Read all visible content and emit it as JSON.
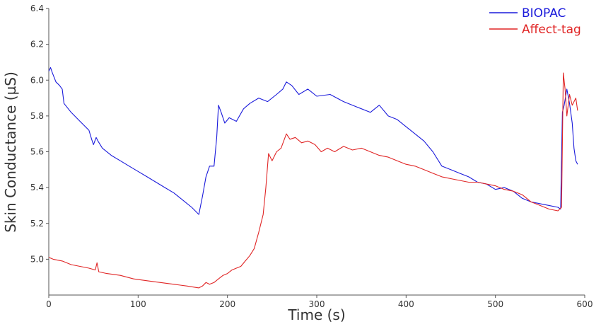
{
  "chart_data": {
    "type": "line",
    "xlabel": "Time (s)",
    "ylabel": "Skin Conductance (µS)",
    "xlim": [
      0,
      600
    ],
    "ylim": [
      4.8,
      6.4
    ],
    "xticks": [
      "0",
      "100",
      "200",
      "300",
      "400",
      "500",
      "600"
    ],
    "yticks": [
      "5.0",
      "5.2",
      "5.4",
      "5.6",
      "5.8",
      "6.0",
      "6.2",
      "6.4"
    ],
    "grid": false,
    "legend_position": "top-right",
    "series": [
      {
        "name": "BIOPAC",
        "color": "#1a1adb",
        "points": [
          [
            0,
            6.05
          ],
          [
            2,
            6.07
          ],
          [
            4,
            6.04
          ],
          [
            8,
            5.99
          ],
          [
            12,
            5.97
          ],
          [
            15,
            5.95
          ],
          [
            17,
            5.87
          ],
          [
            25,
            5.82
          ],
          [
            35,
            5.77
          ],
          [
            45,
            5.72
          ],
          [
            48,
            5.67
          ],
          [
            50,
            5.64
          ],
          [
            53,
            5.68
          ],
          [
            55,
            5.66
          ],
          [
            60,
            5.62
          ],
          [
            70,
            5.58
          ],
          [
            80,
            5.55
          ],
          [
            90,
            5.52
          ],
          [
            100,
            5.49
          ],
          [
            110,
            5.46
          ],
          [
            120,
            5.43
          ],
          [
            130,
            5.4
          ],
          [
            140,
            5.37
          ],
          [
            150,
            5.33
          ],
          [
            160,
            5.29
          ],
          [
            168,
            5.25
          ],
          [
            172,
            5.35
          ],
          [
            176,
            5.46
          ],
          [
            180,
            5.52
          ],
          [
            185,
            5.52
          ],
          [
            188,
            5.68
          ],
          [
            190,
            5.86
          ],
          [
            193,
            5.82
          ],
          [
            197,
            5.76
          ],
          [
            202,
            5.79
          ],
          [
            210,
            5.77
          ],
          [
            218,
            5.84
          ],
          [
            225,
            5.87
          ],
          [
            235,
            5.9
          ],
          [
            245,
            5.88
          ],
          [
            255,
            5.92
          ],
          [
            262,
            5.95
          ],
          [
            266,
            5.99
          ],
          [
            272,
            5.97
          ],
          [
            280,
            5.92
          ],
          [
            290,
            5.95
          ],
          [
            300,
            5.91
          ],
          [
            315,
            5.92
          ],
          [
            330,
            5.88
          ],
          [
            345,
            5.85
          ],
          [
            360,
            5.82
          ],
          [
            370,
            5.86
          ],
          [
            380,
            5.8
          ],
          [
            390,
            5.78
          ],
          [
            400,
            5.74
          ],
          [
            410,
            5.7
          ],
          [
            420,
            5.66
          ],
          [
            430,
            5.6
          ],
          [
            440,
            5.52
          ],
          [
            450,
            5.5
          ],
          [
            460,
            5.48
          ],
          [
            470,
            5.46
          ],
          [
            480,
            5.43
          ],
          [
            490,
            5.42
          ],
          [
            500,
            5.39
          ],
          [
            510,
            5.4
          ],
          [
            520,
            5.38
          ],
          [
            530,
            5.34
          ],
          [
            540,
            5.32
          ],
          [
            550,
            5.31
          ],
          [
            560,
            5.3
          ],
          [
            570,
            5.29
          ],
          [
            573,
            5.28
          ],
          [
            575,
            5.82
          ],
          [
            577,
            5.86
          ],
          [
            580,
            5.95
          ],
          [
            583,
            5.87
          ],
          [
            586,
            5.76
          ],
          [
            588,
            5.62
          ],
          [
            590,
            5.55
          ],
          [
            592,
            5.53
          ]
        ]
      },
      {
        "name": "Affect-tag",
        "color": "#e02525",
        "points": [
          [
            0,
            5.01
          ],
          [
            5,
            5.0
          ],
          [
            15,
            4.99
          ],
          [
            25,
            4.97
          ],
          [
            35,
            4.96
          ],
          [
            45,
            4.95
          ],
          [
            52,
            4.94
          ],
          [
            54,
            4.98
          ],
          [
            56,
            4.93
          ],
          [
            65,
            4.92
          ],
          [
            80,
            4.91
          ],
          [
            95,
            4.89
          ],
          [
            110,
            4.88
          ],
          [
            125,
            4.87
          ],
          [
            140,
            4.86
          ],
          [
            155,
            4.85
          ],
          [
            168,
            4.84
          ],
          [
            172,
            4.85
          ],
          [
            176,
            4.87
          ],
          [
            180,
            4.86
          ],
          [
            185,
            4.87
          ],
          [
            190,
            4.89
          ],
          [
            195,
            4.91
          ],
          [
            200,
            4.92
          ],
          [
            205,
            4.94
          ],
          [
            210,
            4.95
          ],
          [
            215,
            4.96
          ],
          [
            220,
            4.99
          ],
          [
            225,
            5.02
          ],
          [
            230,
            5.06
          ],
          [
            235,
            5.15
          ],
          [
            240,
            5.25
          ],
          [
            243,
            5.4
          ],
          [
            246,
            5.59
          ],
          [
            250,
            5.55
          ],
          [
            255,
            5.6
          ],
          [
            260,
            5.62
          ],
          [
            266,
            5.7
          ],
          [
            270,
            5.67
          ],
          [
            276,
            5.68
          ],
          [
            283,
            5.65
          ],
          [
            290,
            5.66
          ],
          [
            298,
            5.64
          ],
          [
            305,
            5.6
          ],
          [
            312,
            5.62
          ],
          [
            320,
            5.6
          ],
          [
            330,
            5.63
          ],
          [
            340,
            5.61
          ],
          [
            350,
            5.62
          ],
          [
            360,
            5.6
          ],
          [
            370,
            5.58
          ],
          [
            380,
            5.57
          ],
          [
            390,
            5.55
          ],
          [
            400,
            5.53
          ],
          [
            410,
            5.52
          ],
          [
            420,
            5.5
          ],
          [
            430,
            5.48
          ],
          [
            440,
            5.46
          ],
          [
            450,
            5.45
          ],
          [
            460,
            5.44
          ],
          [
            470,
            5.43
          ],
          [
            480,
            5.43
          ],
          [
            490,
            5.42
          ],
          [
            500,
            5.41
          ],
          [
            510,
            5.39
          ],
          [
            520,
            5.38
          ],
          [
            530,
            5.36
          ],
          [
            540,
            5.32
          ],
          [
            550,
            5.3
          ],
          [
            560,
            5.28
          ],
          [
            570,
            5.27
          ],
          [
            574,
            5.29
          ],
          [
            576,
            6.04
          ],
          [
            578,
            5.95
          ],
          [
            580,
            5.8
          ],
          [
            583,
            5.92
          ],
          [
            586,
            5.86
          ],
          [
            590,
            5.9
          ],
          [
            592,
            5.83
          ]
        ]
      }
    ]
  }
}
